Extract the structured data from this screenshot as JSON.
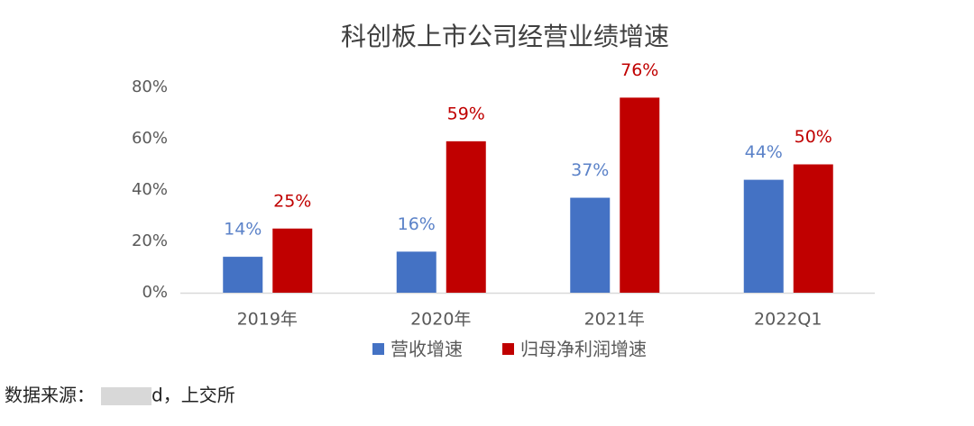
{
  "chart_data": {
    "type": "bar",
    "title": "科创板上市公司经营业绩增速",
    "categories": [
      "2019年",
      "2020年",
      "2021年",
      "2022Q1"
    ],
    "series": [
      {
        "name": "营收增速",
        "color": "#4472c4",
        "values": [
          14,
          16,
          37,
          44
        ],
        "value_labels": [
          "14%",
          "16%",
          "37%",
          "44%"
        ]
      },
      {
        "name": "归母净利润增速",
        "color": "#c00000",
        "values": [
          25,
          59,
          76,
          50
        ],
        "value_labels": [
          "25%",
          "59%",
          "76%",
          "50%"
        ]
      }
    ],
    "ylim": [
      0,
      80
    ],
    "yticks": [
      {
        "value": 0,
        "label": "0%"
      },
      {
        "value": 20,
        "label": "20%"
      },
      {
        "value": 40,
        "label": "40%"
      },
      {
        "value": 60,
        "label": "60%"
      },
      {
        "value": 80,
        "label": "80%"
      }
    ],
    "grid": false,
    "legend": "bottom"
  },
  "source": {
    "prefix": "数据来源：",
    "suffix": "d，上交所"
  }
}
